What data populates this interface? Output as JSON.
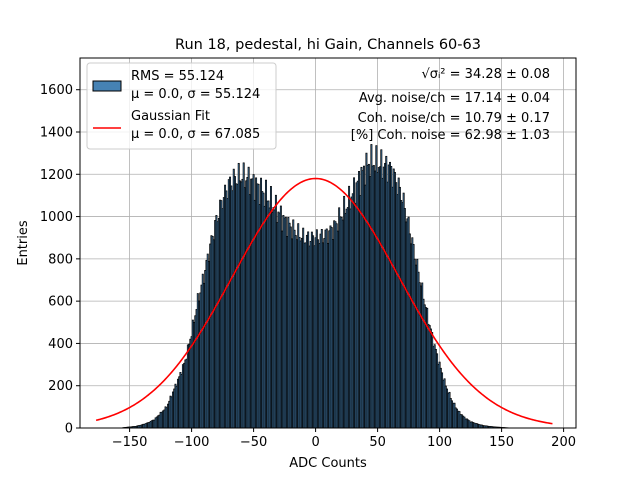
{
  "chart_data": {
    "type": "bar",
    "title": "Run 18, pedestal, hi Gain, Channels 60-63",
    "xlabel": "ADC Counts",
    "ylabel": "Entries",
    "xlim": [
      -190,
      210
    ],
    "ylim": [
      0,
      1750
    ],
    "x_ticks": [
      -150,
      -100,
      -50,
      0,
      50,
      100,
      150,
      200
    ],
    "x_tick_labels": [
      "−150",
      "−100",
      "−50",
      "0",
      "50",
      "100",
      "150",
      "200"
    ],
    "y_ticks": [
      0,
      200,
      400,
      600,
      800,
      1000,
      1200,
      1400,
      1600
    ],
    "y_tick_labels": [
      "0",
      "200",
      "400",
      "600",
      "800",
      "1000",
      "1200",
      "1400",
      "1600"
    ],
    "grid": true,
    "legend_position": "top-left",
    "legend": [
      {
        "kind": "patch",
        "color": "#4682b4",
        "line1": "RMS = 55.124",
        "line2": "μ = 0.0, σ = 55.124"
      },
      {
        "kind": "line",
        "color": "#ff0000",
        "line1": "Gaussian Fit",
        "line2": "μ = 0.0, σ = 67.085"
      }
    ],
    "annotations": [
      {
        "prefix": "√σᵢ²",
        "text": " = 34.28 ± 0.08"
      },
      {
        "prefix": "",
        "text": "Avg. noise/ch = 17.14 ± 0.04"
      },
      {
        "prefix": "",
        "text": "Coh. noise/ch = 10.79 ± 0.17"
      },
      {
        "prefix": "",
        "text": "[%] Coh. noise = 62.98 ± 1.03"
      }
    ],
    "histogram": {
      "bin_width": 1,
      "bar_color": "#4682b4",
      "edge_color": "#000000",
      "x": [
        -155,
        -150,
        -145,
        -140,
        -135,
        -130,
        -125,
        -120,
        -115,
        -110,
        -105,
        -100,
        -95,
        -90,
        -85,
        -80,
        -75,
        -70,
        -65,
        -60,
        -55,
        -50,
        -45,
        -40,
        -35,
        -30,
        -25,
        -20,
        -15,
        -10,
        -5,
        0,
        5,
        10,
        15,
        20,
        25,
        30,
        35,
        40,
        45,
        50,
        55,
        60,
        65,
        70,
        75,
        80,
        85,
        90,
        95,
        100,
        105,
        110,
        115,
        120,
        125,
        130,
        135,
        140,
        145,
        150,
        155
      ],
      "values": [
        2,
        5,
        8,
        15,
        25,
        40,
        70,
        100,
        170,
        240,
        320,
        450,
        600,
        720,
        860,
        980,
        1080,
        1150,
        1180,
        1190,
        1180,
        1160,
        1130,
        1100,
        1060,
        1020,
        980,
        950,
        920,
        900,
        895,
        900,
        905,
        920,
        950,
        1000,
        1050,
        1110,
        1170,
        1230,
        1260,
        1250,
        1240,
        1230,
        1170,
        1090,
        960,
        820,
        680,
        540,
        410,
        300,
        200,
        130,
        80,
        50,
        30,
        20,
        12,
        8,
        5,
        3,
        1
      ]
    },
    "fit": {
      "label": "Gaussian Fit",
      "color": "#ff0000",
      "mu": 0.0,
      "sigma": 67.085,
      "amplitude": 1180,
      "x_range": [
        -177,
        191
      ]
    }
  }
}
